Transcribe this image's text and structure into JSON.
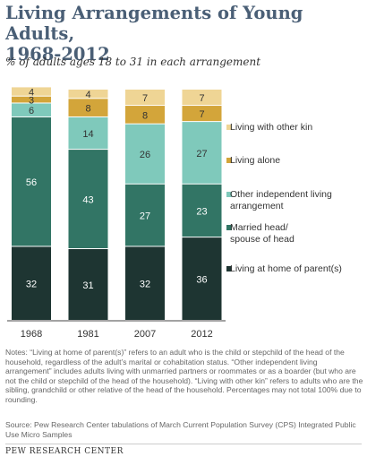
{
  "header": {
    "title_line1": "Living Arrangements of Young Adults,",
    "title_line2": "1968-2012",
    "subtitle": "% of adults ages 18 to 31 in each arrangement"
  },
  "chart_data": {
    "type": "bar",
    "stacked": true,
    "categories": [
      "1968",
      "1981",
      "2007",
      "2012"
    ],
    "series": [
      {
        "name": "Living at home of parent(s)",
        "color": "#1e3532",
        "label_color": "#ffffff",
        "values": [
          32,
          31,
          32,
          36
        ]
      },
      {
        "name": "Married head/ spouse of head",
        "color": "#327565",
        "label_color": "#ffffff",
        "values": [
          56,
          43,
          27,
          23
        ]
      },
      {
        "name": "Other independent living arrangement",
        "color": "#7fc9bb",
        "label_color": "#333333",
        "values": [
          6,
          14,
          26,
          27
        ]
      },
      {
        "name": "Living alone",
        "color": "#d3a53a",
        "label_color": "#333333",
        "values": [
          3,
          8,
          8,
          7
        ]
      },
      {
        "name": "Living with other kin",
        "color": "#efd595",
        "label_color": "#333333",
        "values": [
          4,
          4,
          7,
          7
        ]
      }
    ],
    "legend_order_top_to_bottom": [
      4,
      3,
      2,
      1,
      0
    ],
    "legend_placement": "right",
    "grid": false,
    "ylim": [
      0,
      100
    ]
  },
  "notes": "Notes: “Living at home of parent(s)” refers to an adult who is the child or stepchild of the head of the household, regardless of the adult’s marital or cohabitation status. “Other independent living arrangement” includes adults living with unmarried partners or roommates or as a boarder (but who are not the child or stepchild of the head of the household). “Living with other kin” refers to adults who are the sibling, grandchild or other relative of the head of the household. Percentages may not total 100% due to rounding.",
  "source": "Source: Pew Research Center tabulations of March Current Population Survey (CPS) Integrated Public Use Micro Samples",
  "org": "PEW RESEARCH CENTER"
}
